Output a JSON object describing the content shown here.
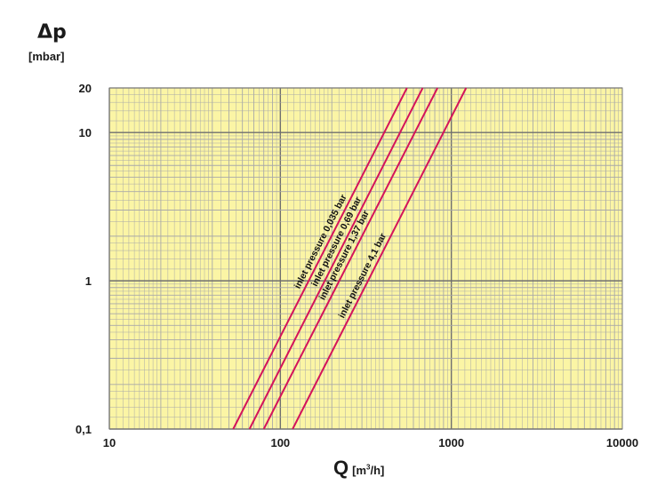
{
  "chart_data": {
    "type": "line",
    "x_scale": "log",
    "y_scale": "log",
    "xlim": [
      10,
      10000
    ],
    "ylim": [
      0.1,
      20
    ],
    "y_symbol": "Δp",
    "y_unit": "[mbar]",
    "x_symbol": "Q",
    "x_unit_prefix": "[m",
    "x_unit_sup": "3",
    "x_unit_suffix": "/h]",
    "x_ticks": [
      "10",
      "100",
      "1000",
      "10000"
    ],
    "y_ticks": [
      "0,1",
      "1",
      "10",
      "20"
    ],
    "grid": true,
    "colors": {
      "plot_bg": "#fbf5a5",
      "grid": "#a9a9a9",
      "series": "#d4145a"
    },
    "series": [
      {
        "name": "inlet pressure 0,035 bar",
        "x": [
          53,
          550
        ],
        "y": [
          0.1,
          20
        ]
      },
      {
        "name": "inlet pressure 0,69 bar",
        "x": [
          66,
          680
        ],
        "y": [
          0.1,
          20
        ]
      },
      {
        "name": "inlet pressure 1,37 bar",
        "x": [
          80,
          830
        ],
        "y": [
          0.1,
          20
        ]
      },
      {
        "name": "inlet pressure 4,1 bar",
        "x": [
          118,
          1220
        ],
        "y": [
          0.1,
          20
        ]
      }
    ]
  }
}
